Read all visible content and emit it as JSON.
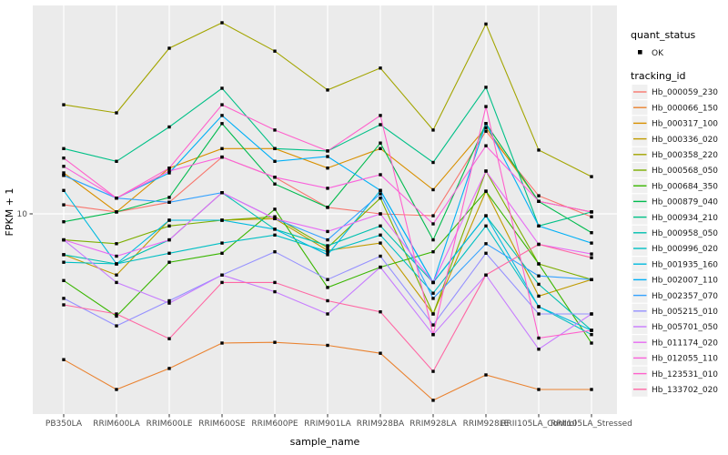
{
  "chart_data": {
    "type": "line",
    "title": "",
    "xlabel": "sample_name",
    "ylabel": "FPKM + 1",
    "y_axis": {
      "scale": "log10",
      "tick_labels": [
        "10"
      ]
    },
    "y_tick": "10",
    "grid": "major-only",
    "legend_position": "right",
    "legend": {
      "quant_status_title": "quant_status",
      "quant_status_key_label": "OK",
      "quant_status_marker": "black-point",
      "tracking_title": "tracking_id"
    },
    "colors": {
      "panel_bg": "#EBEBEB",
      "grid_line": "#FFFFFF",
      "axis_text": "#4D4D4D",
      "axis_title": "#000000",
      "tick_mark": "#333333",
      "point": "#000000",
      "legend_key_bg": "#F0F0F0",
      "legend_text": "#1A1A1A"
    },
    "categories": [
      "PB350LA",
      "RRIM600LA",
      "RRIM600LE",
      "RRIM600SE",
      "RRIM600PE",
      "RRIM901LA",
      "RRIM928BA",
      "RRIM928LA",
      "RRIM928LE",
      "RRII105LA_Control",
      "RRII105LA_Stressed"
    ],
    "series": [
      {
        "name": "Hb_000059_230",
        "color": "#F8766D",
        "values": [
          11.0,
          10.2,
          11.3,
          18.2,
          14.7,
          10.7,
          10.0,
          9.8,
          23.9,
          12.1,
          9.7
        ]
      },
      {
        "name": "Hb_000066_150",
        "color": "#EA8331",
        "values": [
          2.15,
          1.57,
          1.96,
          2.56,
          2.58,
          2.5,
          2.3,
          1.4,
          1.83,
          1.57,
          1.57
        ]
      },
      {
        "name": "Hb_000317_100",
        "color": "#D89000",
        "values": [
          15.4,
          10.2,
          16.2,
          19.9,
          19.9,
          16.2,
          19.9,
          12.9,
          24.8,
          11.4,
          10.2
        ]
      },
      {
        "name": "Hb_000336_020",
        "color": "#C09B00",
        "values": [
          6.5,
          5.25,
          9.35,
          9.35,
          9.5,
          6.8,
          7.35,
          3.48,
          12.7,
          4.2,
          5.0
        ]
      },
      {
        "name": "Hb_000358_220",
        "color": "#A3A500",
        "values": [
          31.6,
          29.0,
          57.3,
          75.0,
          55.6,
          36.9,
          46.5,
          24.2,
          74.0,
          19.6,
          14.8
        ]
      },
      {
        "name": "Hb_000568_050",
        "color": "#7CAE00",
        "values": [
          7.6,
          7.3,
          8.8,
          9.35,
          9.7,
          7.0,
          11.8,
          3.48,
          15.7,
          5.9,
          5.0
        ]
      },
      {
        "name": "Hb_000684_350",
        "color": "#39B600",
        "values": [
          4.95,
          3.4,
          6.0,
          6.6,
          10.5,
          4.6,
          5.7,
          6.7,
          12.7,
          5.9,
          2.56
        ]
      },
      {
        "name": "Hb_000879_040",
        "color": "#00BB4E",
        "values": [
          9.2,
          10.2,
          11.9,
          25.9,
          13.7,
          10.7,
          21.1,
          7.6,
          25.9,
          11.4,
          8.2
        ]
      },
      {
        "name": "Hb_000934_210",
        "color": "#00C087",
        "values": [
          19.9,
          17.4,
          25.0,
          37.6,
          19.9,
          19.4,
          25.6,
          17.2,
          38.0,
          8.8,
          10.2
        ]
      },
      {
        "name": "Hb_000958_050",
        "color": "#00C0AF",
        "values": [
          6.5,
          5.9,
          7.6,
          12.5,
          8.5,
          7.15,
          8.8,
          4.85,
          9.8,
          4.76,
          2.93
        ]
      },
      {
        "name": "Hb_000996_020",
        "color": "#00BFC4",
        "values": [
          6.0,
          5.9,
          6.6,
          7.35,
          8.0,
          6.7,
          8.0,
          4.33,
          8.8,
          3.76,
          2.8
        ]
      },
      {
        "name": "Hb_001935_160",
        "color": "#00BADE",
        "values": [
          12.8,
          5.9,
          9.35,
          9.35,
          8.5,
          6.5,
          12.8,
          4.85,
          9.8,
          3.76,
          2.93
        ]
      },
      {
        "name": "Hb_002007_110",
        "color": "#00B0F6",
        "values": [
          15.0,
          11.8,
          15.4,
          28.2,
          17.4,
          18.3,
          12.8,
          4.85,
          25.9,
          8.8,
          7.35
        ]
      },
      {
        "name": "Hb_002357_070",
        "color": "#35A2FF",
        "values": [
          15.0,
          11.8,
          11.3,
          12.5,
          9.5,
          7.6,
          12.35,
          4.1,
          7.3,
          5.2,
          5.0
        ]
      },
      {
        "name": "Hb_005215_010",
        "color": "#9590FF",
        "values": [
          4.1,
          3.07,
          4.0,
          5.25,
          6.7,
          5.0,
          6.4,
          3.1,
          6.6,
          3.48,
          3.48
        ]
      },
      {
        "name": "Hb_005701_050",
        "color": "#C77CFF",
        "values": [
          7.6,
          4.85,
          3.9,
          5.25,
          4.4,
          3.48,
          5.7,
          2.8,
          5.25,
          2.4,
          3.48
        ]
      },
      {
        "name": "Hb_011174_020",
        "color": "#E76BF3",
        "values": [
          7.6,
          6.4,
          7.6,
          12.5,
          9.5,
          8.3,
          10.0,
          4.85,
          15.7,
          7.25,
          6.55
        ]
      },
      {
        "name": "Hb_012055_110",
        "color": "#FA62DB",
        "values": [
          16.5,
          11.8,
          15.7,
          18.2,
          14.7,
          13.1,
          15.1,
          9.0,
          20.5,
          11.4,
          10.2
        ]
      },
      {
        "name": "Hb_123531_010",
        "color": "#FF61CC",
        "values": [
          18.0,
          11.8,
          16.2,
          31.6,
          24.2,
          19.4,
          28.2,
          2.8,
          31.0,
          2.7,
          2.93
        ]
      },
      {
        "name": "Hb_133702_020",
        "color": "#FF67A4",
        "values": [
          3.83,
          3.48,
          2.68,
          4.85,
          4.85,
          4.0,
          3.56,
          1.9,
          5.25,
          7.25,
          6.3
        ]
      }
    ]
  }
}
